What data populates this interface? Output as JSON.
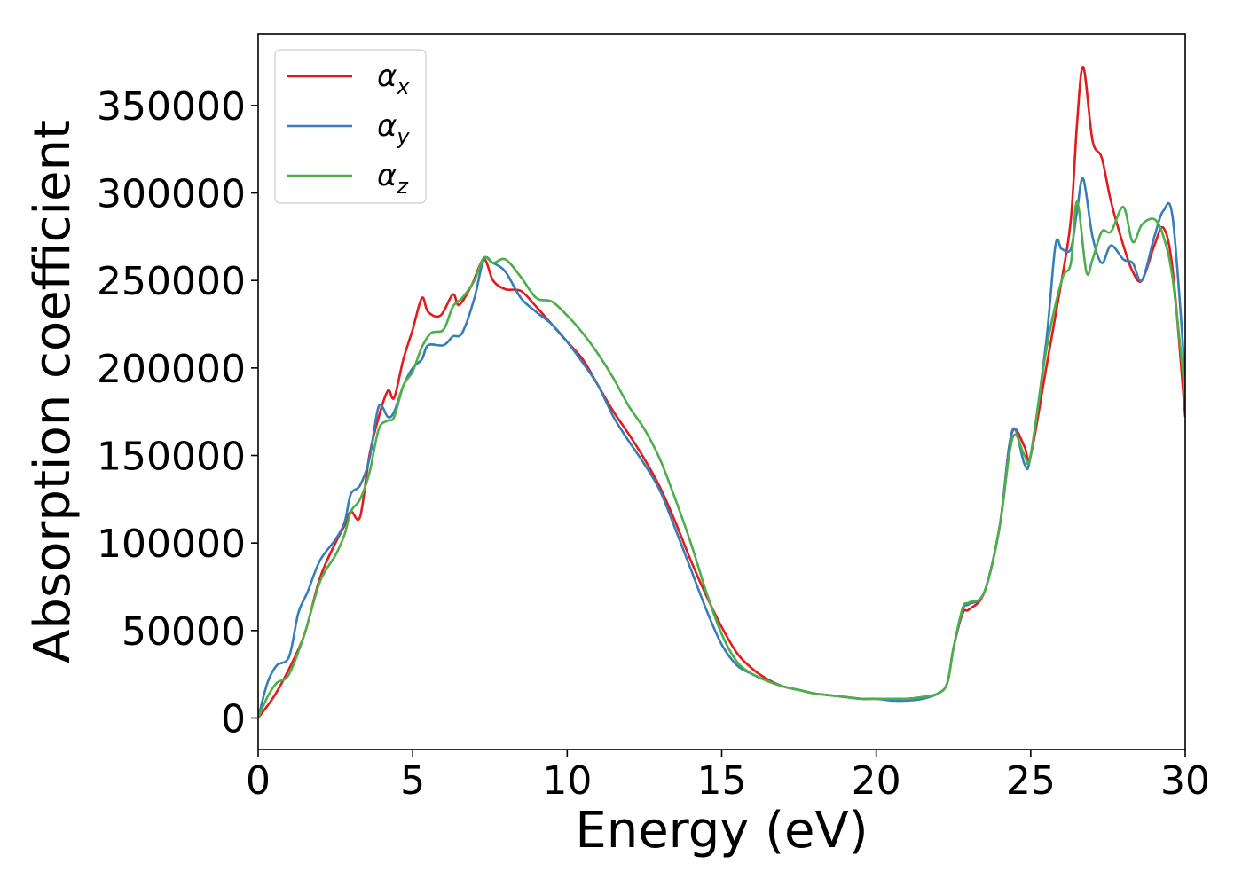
{
  "chart_data": {
    "type": "line",
    "xlabel": "Energy (eV)",
    "ylabel": "Absorption coefficient",
    "xlim": [
      0,
      30
    ],
    "ylim": [
      -18000,
      391000
    ],
    "xticks": [
      0,
      5,
      10,
      15,
      20,
      25,
      30
    ],
    "yticks": [
      0,
      50000,
      100000,
      150000,
      200000,
      250000,
      300000,
      350000
    ],
    "grid": false,
    "legend_position": "top-left",
    "series": [
      {
        "name": "αx",
        "label_main": "α",
        "label_sub": "x",
        "color": "#e41a1c",
        "x": [
          0,
          0.5,
          1,
          1.5,
          2,
          2.5,
          2.8,
          3.0,
          3.3,
          3.6,
          3.9,
          4.2,
          4.4,
          4.7,
          5.0,
          5.3,
          5.5,
          5.9,
          6.3,
          6.5,
          6.9,
          7.3,
          7.6,
          8.0,
          8.5,
          9.0,
          9.5,
          10.0,
          10.5,
          11.0,
          11.5,
          12.0,
          12.5,
          13.0,
          13.5,
          14.0,
          14.5,
          15.0,
          15.5,
          16.0,
          16.5,
          17.0,
          17.5,
          18.0,
          18.5,
          19.0,
          19.5,
          20.0,
          20.5,
          21.0,
          21.5,
          22.0,
          22.3,
          22.5,
          22.8,
          23.0,
          23.5,
          24.0,
          24.3,
          24.5,
          24.8,
          25.0,
          25.5,
          26.0,
          26.3,
          26.5,
          26.7,
          27.0,
          27.3,
          27.6,
          28.0,
          28.3,
          28.6,
          29.0,
          29.3,
          29.6,
          30.0
        ],
        "values": [
          0,
          12000,
          28000,
          48000,
          80000,
          100000,
          110000,
          118000,
          115000,
          150000,
          172000,
          187000,
          183000,
          205000,
          222000,
          240000,
          232000,
          230000,
          242000,
          236000,
          247000,
          262000,
          250000,
          245000,
          244000,
          235000,
          225000,
          215000,
          205000,
          190000,
          175000,
          162000,
          148000,
          132000,
          112000,
          90000,
          70000,
          52000,
          37000,
          28000,
          22000,
          18000,
          16000,
          14000,
          13000,
          12000,
          11000,
          11000,
          11000,
          11000,
          12000,
          14000,
          20000,
          40000,
          60000,
          62000,
          72000,
          110000,
          155000,
          165000,
          155000,
          150000,
          200000,
          250000,
          285000,
          340000,
          372000,
          330000,
          320000,
          295000,
          270000,
          255000,
          250000,
          270000,
          280000,
          255000,
          172000
        ]
      },
      {
        "name": "αy",
        "label_main": "α",
        "label_sub": "y",
        "color": "#377eb8",
        "x": [
          0,
          0.3,
          0.6,
          1,
          1.3,
          1.6,
          2,
          2.5,
          2.8,
          3.0,
          3.3,
          3.6,
          3.9,
          4.2,
          4.4,
          4.7,
          5.0,
          5.3,
          5.5,
          6.0,
          6.3,
          6.6,
          7.0,
          7.3,
          7.6,
          8.0,
          8.5,
          9.0,
          9.5,
          10.0,
          10.5,
          11.0,
          11.5,
          12.0,
          12.5,
          13.0,
          13.5,
          14.0,
          14.5,
          15.0,
          15.5,
          16.0,
          16.5,
          17.0,
          17.5,
          18.0,
          18.5,
          19.0,
          19.5,
          20.0,
          20.5,
          21.0,
          21.5,
          22.0,
          22.3,
          22.5,
          22.8,
          23.0,
          23.5,
          24.0,
          24.3,
          24.5,
          24.8,
          25.0,
          25.5,
          25.8,
          26.0,
          26.3,
          26.5,
          26.7,
          27.0,
          27.3,
          27.6,
          28.0,
          28.3,
          28.6,
          29.0,
          29.3,
          29.6,
          30.0
        ],
        "values": [
          0,
          20000,
          30000,
          35000,
          60000,
          72000,
          90000,
          102000,
          112000,
          128000,
          133000,
          148000,
          178000,
          172000,
          175000,
          190000,
          200000,
          205000,
          213000,
          213000,
          218000,
          220000,
          240000,
          262000,
          260000,
          255000,
          240000,
          232000,
          225000,
          215000,
          203000,
          190000,
          172000,
          158000,
          145000,
          130000,
          108000,
          85000,
          62000,
          42000,
          30000,
          25000,
          21000,
          18000,
          16000,
          14000,
          13000,
          12000,
          11000,
          11000,
          10000,
          10000,
          11000,
          14000,
          20000,
          40000,
          62000,
          65000,
          72000,
          110000,
          155000,
          165000,
          145000,
          150000,
          215000,
          270000,
          268000,
          268000,
          290000,
          308000,
          275000,
          260000,
          270000,
          262000,
          260000,
          250000,
          275000,
          290000,
          285000,
          195000
        ]
      },
      {
        "name": "αz",
        "label_main": "α",
        "label_sub": "z",
        "color": "#4daf4a",
        "x": [
          0,
          0.3,
          0.6,
          1,
          1.5,
          2,
          2.5,
          2.8,
          3.0,
          3.3,
          3.6,
          3.9,
          4.2,
          4.4,
          4.7,
          5.0,
          5.3,
          5.6,
          6.0,
          6.3,
          6.6,
          7.0,
          7.3,
          7.6,
          8.0,
          8.5,
          9.0,
          9.5,
          10.0,
          10.5,
          11.0,
          11.5,
          12.0,
          12.5,
          13.0,
          13.5,
          14.0,
          14.5,
          15.0,
          15.5,
          16.0,
          16.5,
          17.0,
          17.5,
          18.0,
          18.5,
          19.0,
          19.5,
          20.0,
          20.5,
          21.0,
          21.5,
          22.0,
          22.3,
          22.5,
          22.8,
          23.0,
          23.5,
          24.0,
          24.3,
          24.5,
          24.8,
          25.0,
          25.5,
          26.0,
          26.3,
          26.5,
          26.8,
          27.0,
          27.3,
          27.6,
          28.0,
          28.3,
          28.6,
          29.0,
          29.3,
          29.6,
          30.0
        ],
        "values": [
          0,
          12000,
          20000,
          25000,
          48000,
          78000,
          93000,
          105000,
          118000,
          125000,
          140000,
          165000,
          170000,
          172000,
          190000,
          198000,
          212000,
          220000,
          222000,
          235000,
          240000,
          250000,
          263000,
          260000,
          262000,
          252000,
          240000,
          238000,
          230000,
          220000,
          208000,
          194000,
          178000,
          165000,
          148000,
          125000,
          100000,
          72000,
          48000,
          32000,
          25000,
          21000,
          18000,
          16000,
          14000,
          13000,
          12000,
          11000,
          11000,
          11000,
          11000,
          12000,
          14000,
          20000,
          40000,
          63000,
          66000,
          72000,
          110000,
          150000,
          162000,
          150000,
          150000,
          210000,
          250000,
          260000,
          295000,
          255000,
          262000,
          278000,
          278000,
          292000,
          272000,
          282000,
          285000,
          275000,
          250000,
          185000
        ]
      }
    ]
  }
}
